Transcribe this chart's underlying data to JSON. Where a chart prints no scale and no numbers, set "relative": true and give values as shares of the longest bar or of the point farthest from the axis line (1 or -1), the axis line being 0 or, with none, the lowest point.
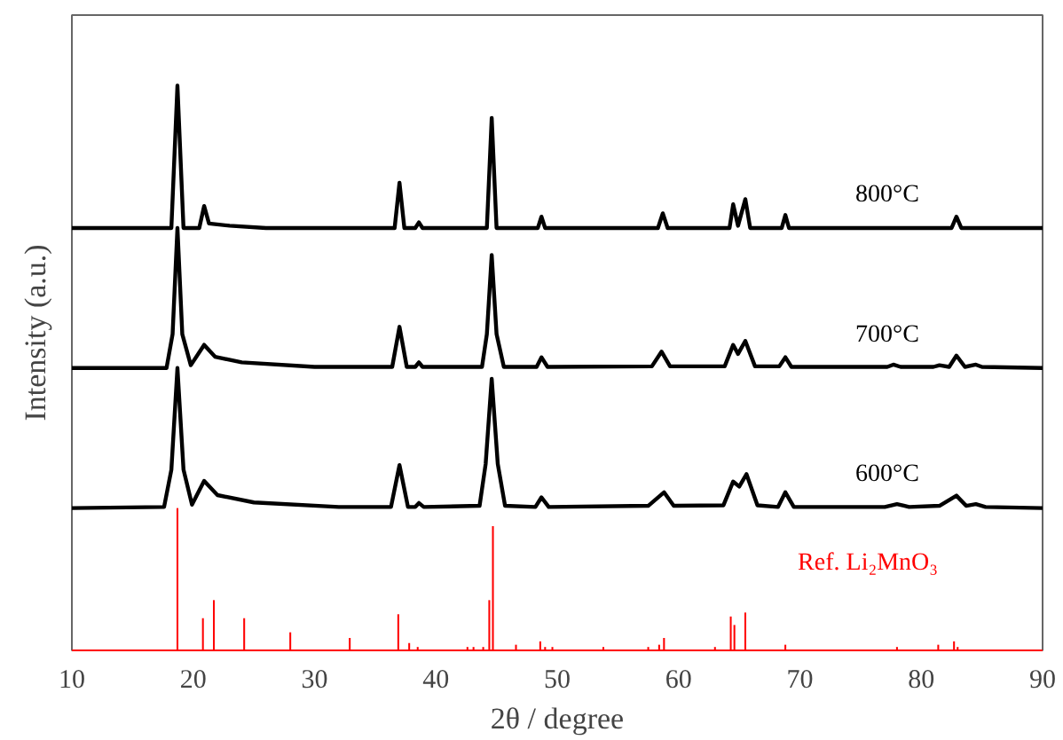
{
  "chart_data": {
    "type": "line",
    "relative": true,
    "xlabel": "2θ / degree",
    "ylabel": "Intensity (a.u.)",
    "xlim": [
      10,
      90
    ],
    "xticks": [
      10,
      20,
      30,
      40,
      50,
      60,
      70,
      80,
      90
    ],
    "grid": false,
    "marker": "none",
    "line_style": "solid",
    "series": [
      {
        "name": "800°C",
        "color": "#000000",
        "x": [
          10,
          18.2,
          18.7,
          19.2,
          20.5,
          20.9,
          21.3,
          23,
          26,
          36.6,
          37.0,
          37.4,
          38.3,
          38.6,
          38.9,
          44.2,
          44.6,
          45.0,
          48.4,
          48.7,
          49.0,
          58.3,
          58.7,
          59.1,
          64.2,
          64.5,
          64.9,
          65.5,
          65.9,
          68.5,
          68.8,
          69.1,
          82.5,
          82.9,
          83.3,
          90
        ],
        "values": [
          0.748,
          0.748,
          1.0,
          0.748,
          0.748,
          0.787,
          0.756,
          0.752,
          0.748,
          0.748,
          0.828,
          0.748,
          0.748,
          0.758,
          0.748,
          0.748,
          0.943,
          0.748,
          0.748,
          0.768,
          0.748,
          0.748,
          0.774,
          0.748,
          0.748,
          0.79,
          0.752,
          0.799,
          0.748,
          0.748,
          0.771,
          0.748,
          0.748,
          0.768,
          0.748,
          0.748
        ]
      },
      {
        "name": "700°C",
        "color": "#000000",
        "x": [
          10,
          17.8,
          18.3,
          18.7,
          19.1,
          19.8,
          20.9,
          21.8,
          24,
          30,
          36.4,
          37.0,
          37.6,
          38.3,
          38.6,
          38.9,
          43.8,
          44.2,
          44.6,
          45.0,
          45.6,
          48.3,
          48.7,
          49.2,
          57.8,
          58.6,
          59.3,
          63.8,
          64.5,
          64.9,
          65.5,
          66.3,
          68.3,
          68.8,
          69.3,
          77.2,
          77.7,
          78.3,
          81.0,
          81.5,
          82.3,
          82.9,
          83.6,
          84.5,
          85,
          90
        ],
        "values": [
          0.5,
          0.5,
          0.56,
          0.748,
          0.56,
          0.505,
          0.541,
          0.52,
          0.51,
          0.502,
          0.502,
          0.573,
          0.502,
          0.502,
          0.51,
          0.502,
          0.502,
          0.56,
          0.7,
          0.56,
          0.502,
          0.502,
          0.519,
          0.502,
          0.503,
          0.529,
          0.503,
          0.503,
          0.541,
          0.525,
          0.548,
          0.503,
          0.503,
          0.519,
          0.502,
          0.502,
          0.506,
          0.502,
          0.502,
          0.505,
          0.502,
          0.522,
          0.502,
          0.506,
          0.502,
          0.5
        ]
      },
      {
        "name": "600°C",
        "color": "#000000",
        "x": [
          10,
          17.6,
          18.2,
          18.7,
          19.2,
          19.9,
          20.9,
          22,
          25,
          32,
          36.3,
          37.0,
          37.7,
          38.3,
          38.6,
          39.0,
          43.6,
          44.1,
          44.6,
          45.1,
          45.7,
          48.2,
          48.7,
          49.3,
          57.5,
          58.8,
          59.6,
          63.7,
          64.5,
          65.0,
          65.6,
          66.5,
          68.2,
          68.8,
          69.5,
          77,
          78,
          79,
          81.5,
          82.9,
          83.7,
          84.5,
          85.3,
          90
        ],
        "values": [
          0.252,
          0.254,
          0.32,
          0.5,
          0.32,
          0.258,
          0.3,
          0.275,
          0.262,
          0.254,
          0.254,
          0.328,
          0.254,
          0.254,
          0.261,
          0.254,
          0.256,
          0.33,
          0.481,
          0.33,
          0.256,
          0.254,
          0.271,
          0.254,
          0.256,
          0.28,
          0.256,
          0.257,
          0.299,
          0.29,
          0.312,
          0.257,
          0.254,
          0.28,
          0.254,
          0.254,
          0.259,
          0.254,
          0.256,
          0.274,
          0.256,
          0.259,
          0.254,
          0.252
        ]
      },
      {
        "name": "Ref. Li₂MnO₃",
        "type": "bar",
        "color": "#ff0000",
        "x": [
          18.7,
          20.8,
          21.7,
          24.2,
          28.0,
          32.9,
          36.9,
          37.8,
          38.5,
          42.6,
          43.1,
          43.9,
          44.4,
          44.7,
          46.6,
          48.6,
          49.0,
          49.6,
          53.8,
          57.5,
          58.4,
          58.8,
          63.0,
          64.3,
          64.6,
          65.5,
          68.8,
          78,
          81.4,
          82.7,
          83
        ],
        "values": [
          0.252,
          0.057,
          0.089,
          0.057,
          0.032,
          0.022,
          0.064,
          0.013,
          0.006,
          0.006,
          0.006,
          0.006,
          0.089,
          0.22,
          0.01,
          0.016,
          0.006,
          0.006,
          0.006,
          0.006,
          0.01,
          0.022,
          0.006,
          0.06,
          0.045,
          0.067,
          0.01,
          0.006,
          0.01,
          0.016,
          0.006
        ]
      }
    ]
  }
}
